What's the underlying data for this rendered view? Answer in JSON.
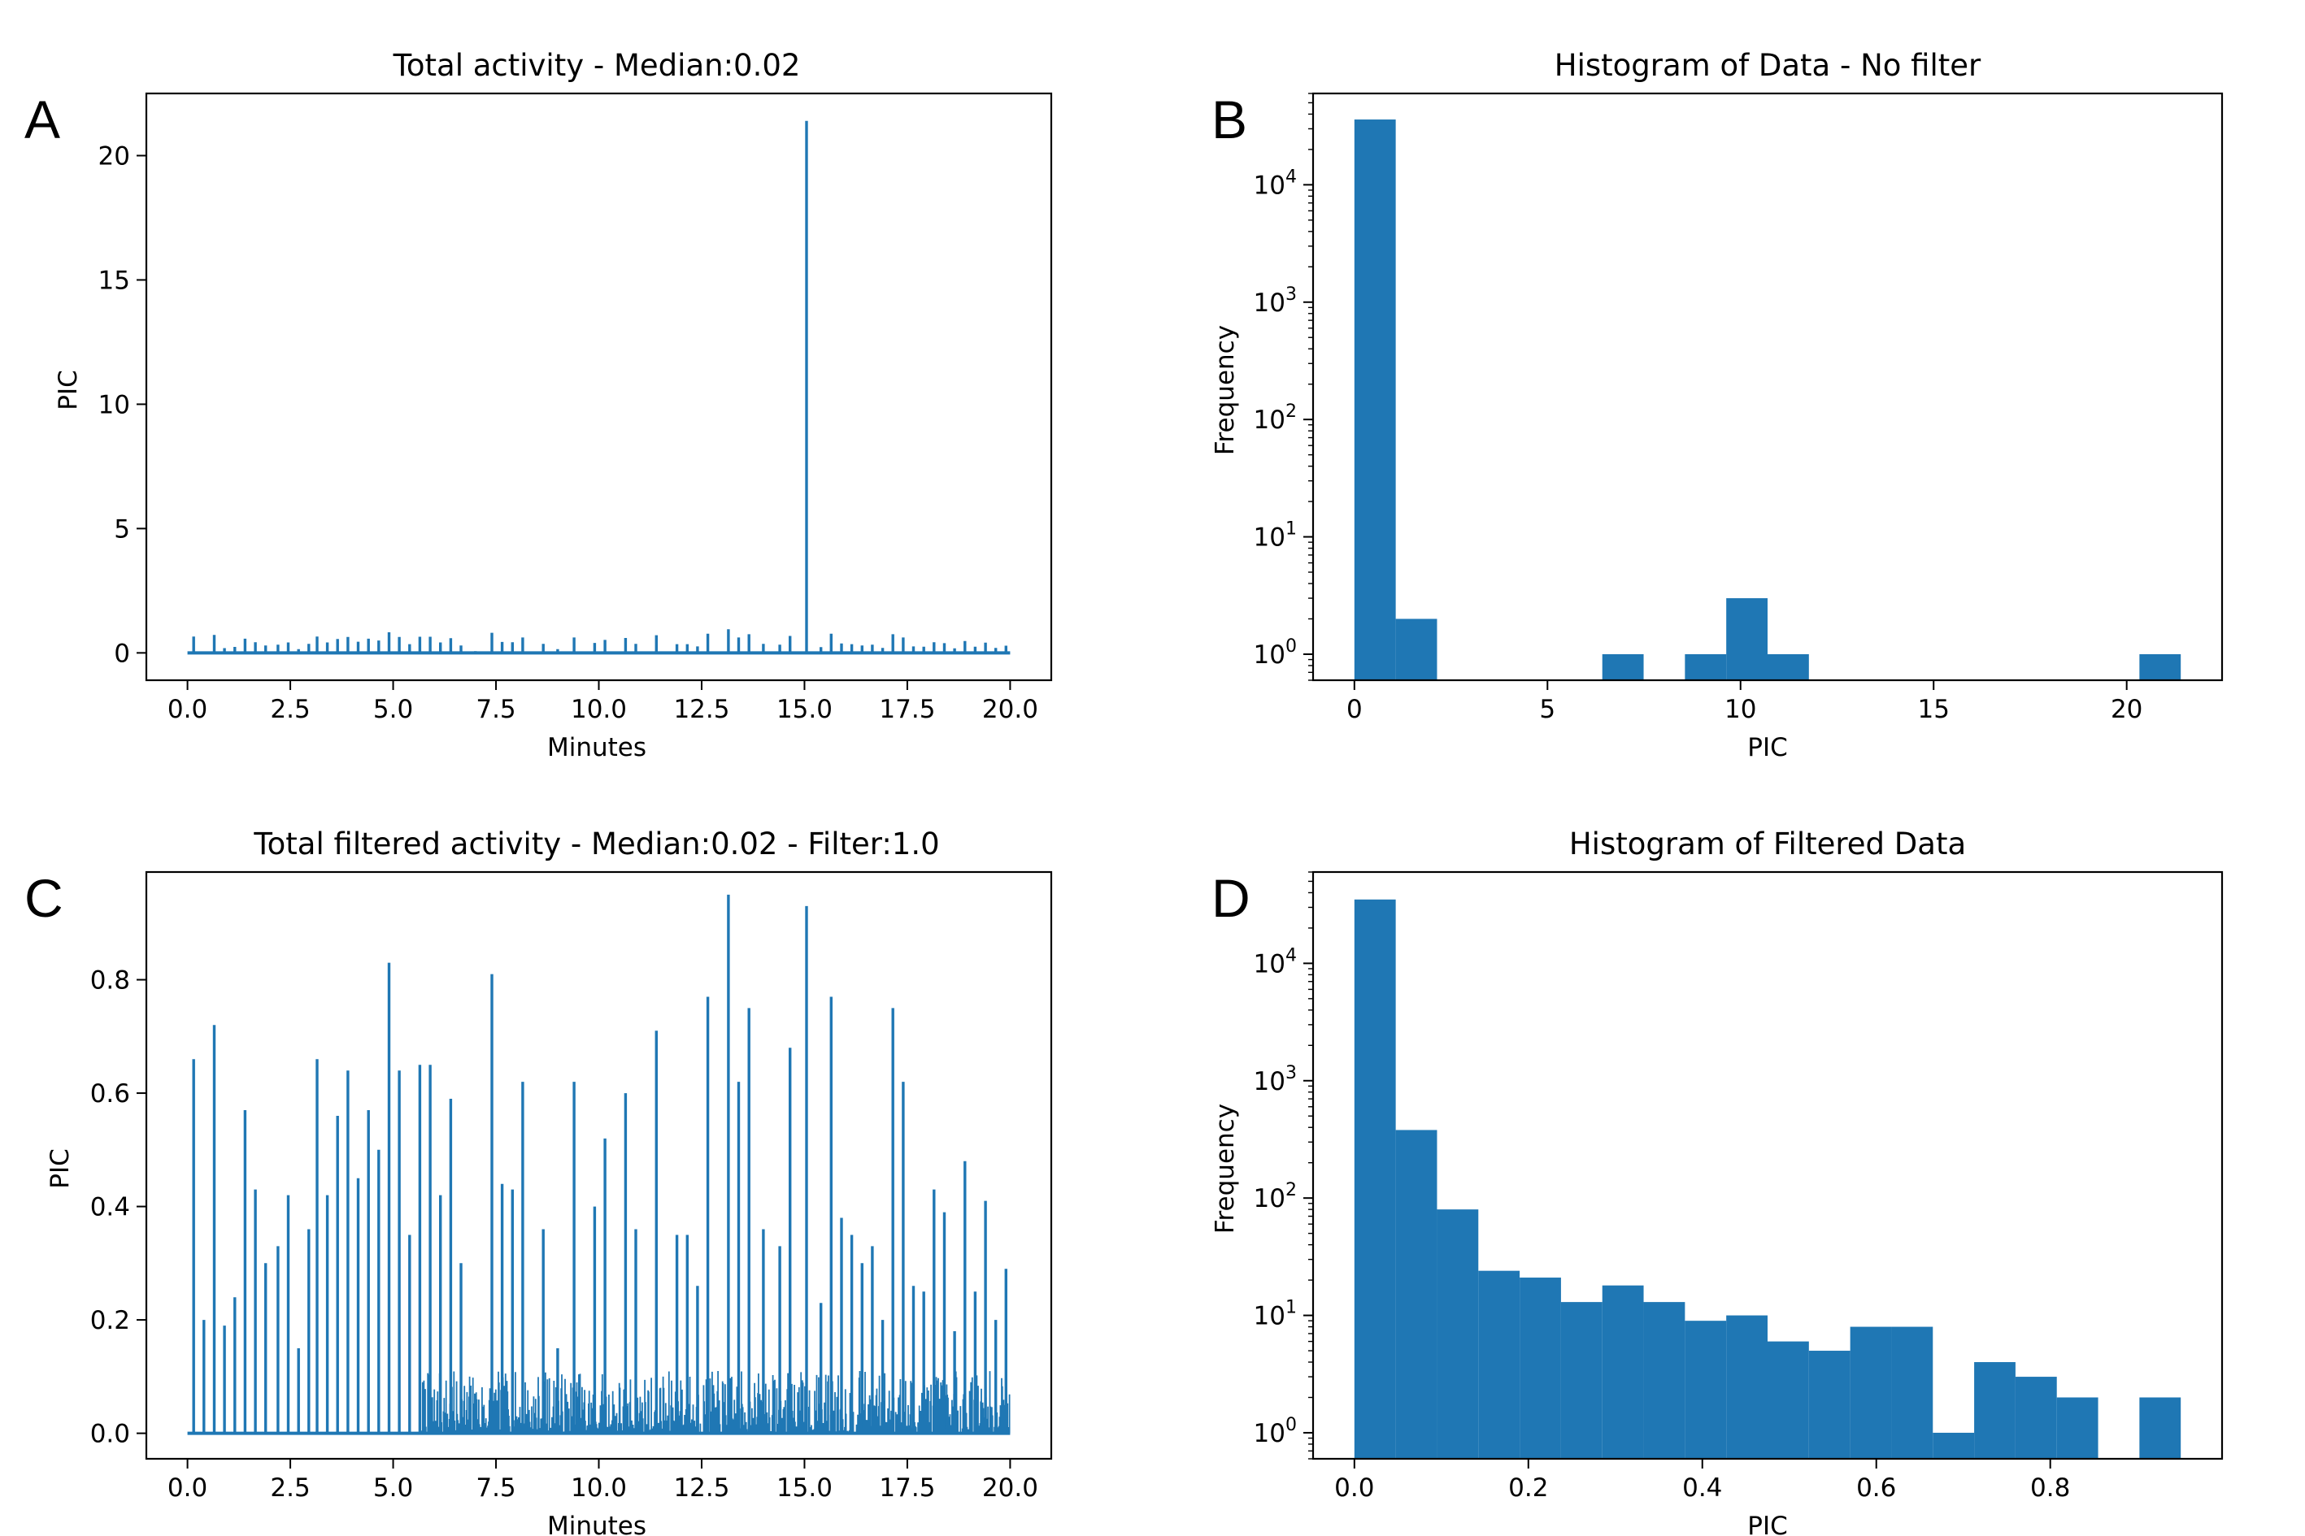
{
  "chart_data": [
    {
      "panel": "A",
      "type": "line",
      "title": "Total activity - Median:0.02",
      "xlabel": "Minutes",
      "ylabel": "PIC",
      "xlim": [
        -1.0,
        21.0
      ],
      "ylim": [
        -1.1,
        22.5
      ],
      "xticks": [
        "0.0",
        "2.5",
        "5.0",
        "7.5",
        "10.0",
        "12.5",
        "15.0",
        "17.5",
        "20.0"
      ],
      "xtick_values": [
        0,
        2.5,
        5,
        7.5,
        10,
        12.5,
        15,
        17.5,
        20
      ],
      "yticks": [
        "0",
        "5",
        "10",
        "15",
        "20"
      ],
      "ytick_values": [
        0,
        5,
        10,
        15,
        20
      ],
      "series": [
        {
          "name": "activity",
          "color": "#1f77b4",
          "x": [
            0.15,
            0.65,
            0.9,
            1.15,
            1.4,
            1.65,
            1.9,
            2.2,
            2.45,
            2.7,
            2.95,
            3.15,
            3.4,
            3.65,
            3.9,
            4.15,
            4.4,
            4.65,
            4.9,
            5.15,
            5.4,
            5.65,
            5.9,
            6.15,
            6.4,
            6.65,
            7.0,
            7.4,
            7.65,
            7.9,
            8.15,
            8.65,
            9.0,
            9.4,
            9.9,
            10.15,
            10.65,
            10.9,
            11.4,
            11.9,
            12.15,
            12.4,
            12.65,
            13.15,
            13.4,
            13.65,
            14.0,
            14.4,
            14.65,
            15.05,
            15.4,
            15.65,
            15.9,
            16.15,
            16.4,
            16.65,
            16.9,
            17.15,
            17.4,
            17.65,
            17.9,
            18.15,
            18.4,
            18.65,
            18.9,
            19.15,
            19.4,
            19.65,
            19.9
          ],
          "y": [
            0.66,
            0.72,
            0.19,
            0.24,
            0.57,
            0.43,
            0.3,
            0.33,
            0.42,
            0.15,
            0.36,
            0.66,
            0.42,
            0.56,
            0.64,
            0.45,
            0.57,
            0.5,
            0.83,
            0.64,
            0.35,
            0.65,
            0.65,
            0.42,
            0.59,
            0.3,
            0.07,
            0.81,
            0.44,
            0.43,
            0.62,
            0.36,
            0.15,
            0.62,
            0.4,
            0.52,
            0.6,
            0.36,
            0.71,
            0.35,
            0.35,
            0.26,
            0.77,
            0.95,
            0.62,
            0.75,
            0.36,
            0.33,
            0.68,
            21.4,
            0.23,
            0.77,
            0.38,
            0.35,
            0.3,
            0.33,
            0.2,
            0.75,
            0.62,
            0.26,
            0.25,
            0.43,
            0.39,
            0.18,
            0.48,
            0.25,
            0.41,
            0.2,
            0.29
          ],
          "spike_fraction": 0.4
        }
      ]
    },
    {
      "panel": "B",
      "type": "bar",
      "title": "Histogram of Data - No filter",
      "xlabel": "PIC",
      "ylabel": "Frequency",
      "yscale": "log",
      "xlim": [
        -1.07,
        22.47
      ],
      "ylim": [
        0.6,
        60000
      ],
      "xticks": [
        "0",
        "5",
        "10",
        "15",
        "20"
      ],
      "xtick_values": [
        0,
        5,
        10,
        15,
        20
      ],
      "ytick_base": "10",
      "ytick_exponents": [
        "0",
        "1",
        "2",
        "3",
        "4"
      ],
      "bin_edges": [
        0,
        1.07,
        2.14,
        3.21,
        4.28,
        5.35,
        6.42,
        7.49,
        8.56,
        9.63,
        10.7,
        11.77,
        12.84,
        13.91,
        14.98,
        16.05,
        17.12,
        18.19,
        19.26,
        20.33,
        21.4
      ],
      "values": [
        36000,
        2,
        0,
        0,
        0,
        0,
        1,
        0,
        1,
        3,
        1,
        0,
        0,
        0,
        0,
        0,
        0,
        0,
        0,
        1
      ],
      "color": "#1f77b4"
    },
    {
      "panel": "C",
      "type": "line",
      "title": "Total filtered activity - Median:0.02 - Filter:1.0",
      "xlabel": "Minutes",
      "ylabel": "PIC",
      "xlim": [
        -1.0,
        21.0
      ],
      "ylim": [
        -0.045,
        0.99
      ],
      "xticks": [
        "0.0",
        "2.5",
        "5.0",
        "7.5",
        "10.0",
        "12.5",
        "15.0",
        "17.5",
        "20.0"
      ],
      "xtick_values": [
        0,
        2.5,
        5,
        7.5,
        10,
        12.5,
        15,
        17.5,
        20
      ],
      "yticks": [
        "0.0",
        "0.2",
        "0.4",
        "0.6",
        "0.8"
      ],
      "ytick_values": [
        0,
        0.2,
        0.4,
        0.6,
        0.8
      ],
      "series": [
        {
          "name": "filtered activity",
          "color": "#1f77b4",
          "x": [
            0.15,
            0.4,
            0.65,
            0.9,
            1.15,
            1.4,
            1.65,
            1.9,
            2.2,
            2.45,
            2.7,
            2.95,
            3.15,
            3.4,
            3.65,
            3.9,
            4.15,
            4.4,
            4.65,
            4.9,
            5.15,
            5.4,
            5.65,
            5.9,
            6.15,
            6.4,
            6.65,
            7.0,
            7.4,
            7.65,
            7.9,
            8.15,
            8.65,
            9.0,
            9.4,
            9.9,
            10.15,
            10.65,
            10.9,
            11.4,
            11.9,
            12.15,
            12.4,
            12.65,
            13.15,
            13.4,
            13.65,
            14.0,
            14.4,
            14.65,
            15.05,
            15.4,
            15.65,
            15.9,
            16.15,
            16.4,
            16.65,
            16.9,
            17.15,
            17.4,
            17.65,
            17.9,
            18.15,
            18.4,
            18.65,
            18.9,
            19.15,
            19.4,
            19.65,
            19.9
          ],
          "y": [
            0.66,
            0.2,
            0.72,
            0.19,
            0.24,
            0.57,
            0.43,
            0.3,
            0.33,
            0.42,
            0.15,
            0.36,
            0.66,
            0.42,
            0.56,
            0.64,
            0.45,
            0.57,
            0.5,
            0.83,
            0.64,
            0.35,
            0.65,
            0.65,
            0.42,
            0.59,
            0.3,
            0.07,
            0.81,
            0.44,
            0.43,
            0.62,
            0.36,
            0.15,
            0.62,
            0.4,
            0.52,
            0.6,
            0.36,
            0.71,
            0.35,
            0.35,
            0.26,
            0.77,
            0.95,
            0.62,
            0.75,
            0.36,
            0.33,
            0.68,
            0.93,
            0.23,
            0.77,
            0.38,
            0.35,
            0.3,
            0.33,
            0.2,
            0.75,
            0.62,
            0.26,
            0.25,
            0.43,
            0.39,
            0.18,
            0.48,
            0.25,
            0.41,
            0.2,
            0.29
          ],
          "noise_start": 5.7,
          "noise_end": 20.0,
          "noise_max": 0.11
        }
      ]
    },
    {
      "panel": "D",
      "type": "bar",
      "title": "Histogram of Filtered Data",
      "xlabel": "PIC",
      "ylabel": "Frequency",
      "yscale": "log",
      "xlim": [
        -0.0475,
        0.9975
      ],
      "ylim": [
        0.6,
        60000
      ],
      "xticks": [
        "0.0",
        "0.2",
        "0.4",
        "0.6",
        "0.8"
      ],
      "xtick_values": [
        0,
        0.2,
        0.4,
        0.6,
        0.8
      ],
      "ytick_base": "10",
      "ytick_exponents": [
        "0",
        "1",
        "2",
        "3",
        "4"
      ],
      "bin_edges": [
        0,
        0.0475,
        0.095,
        0.1425,
        0.19,
        0.2375,
        0.285,
        0.3325,
        0.38,
        0.4275,
        0.475,
        0.5225,
        0.57,
        0.6175,
        0.665,
        0.7125,
        0.76,
        0.8075,
        0.855,
        0.9025,
        0.95
      ],
      "values": [
        35000,
        380,
        80,
        24,
        21,
        13,
        18,
        13,
        9,
        10,
        6,
        5,
        8,
        8,
        1,
        4,
        3,
        2,
        0,
        2
      ],
      "color": "#1f77b4"
    }
  ],
  "panel_letters": [
    "A",
    "B",
    "C",
    "D"
  ]
}
